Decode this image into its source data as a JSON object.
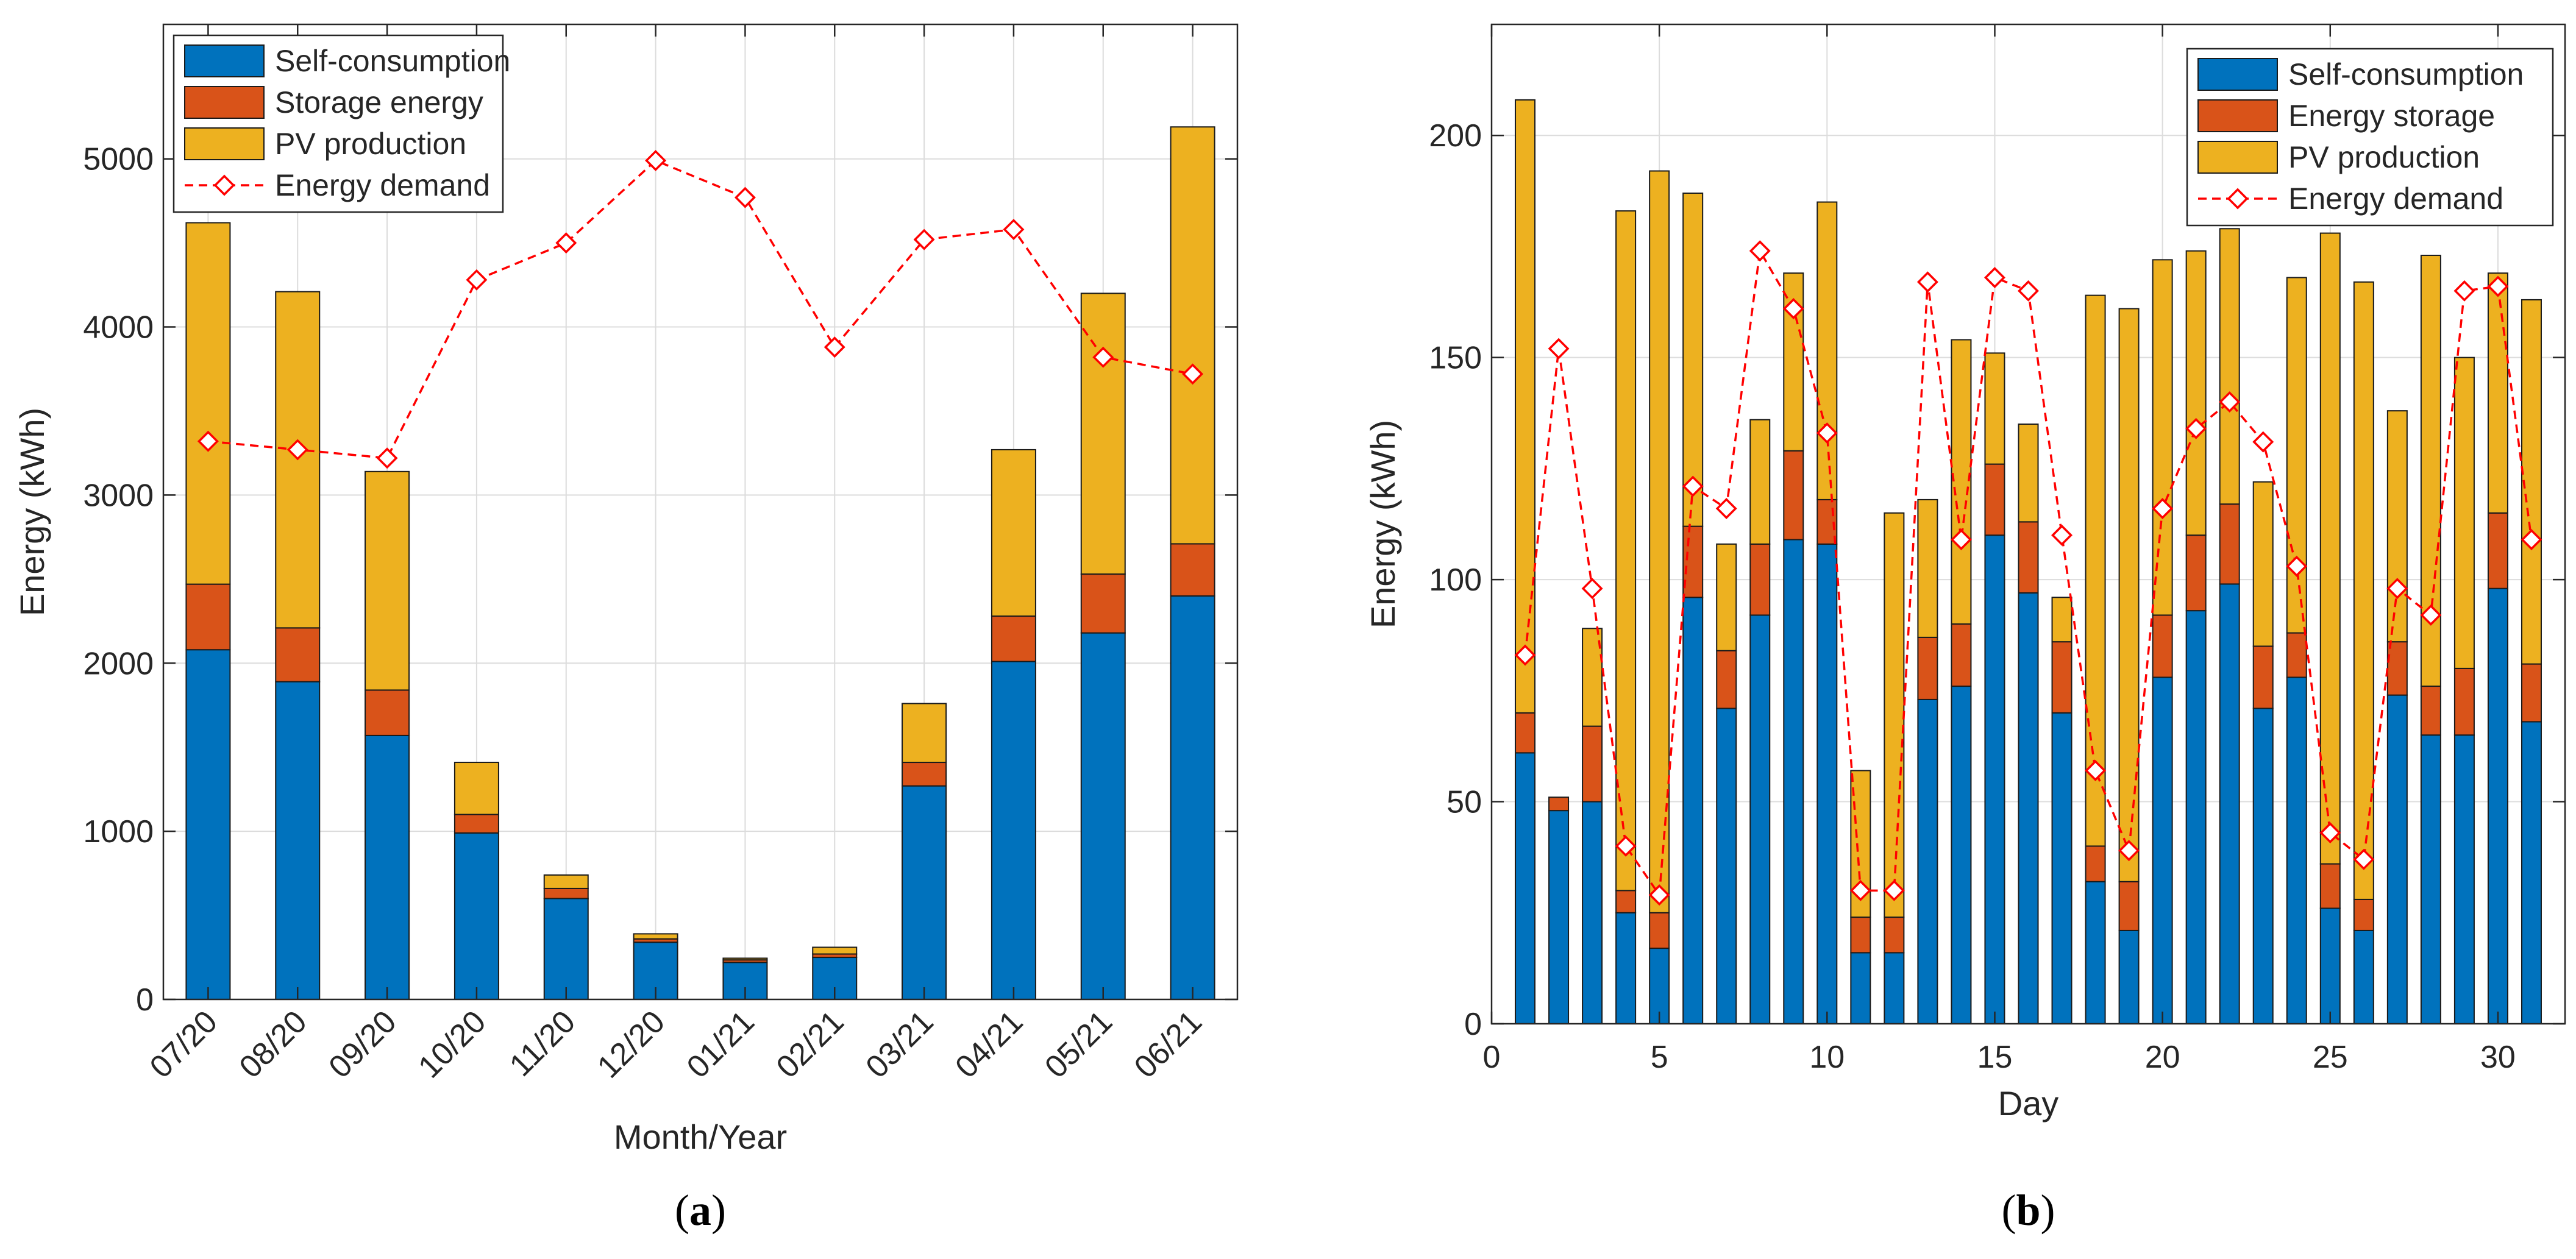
{
  "chart_data": [
    {
      "id": "a",
      "type": "bar",
      "stacked": true,
      "panel_label": "(a)",
      "title": "",
      "xlabel": "Month/Year",
      "ylabel": "Energy (kWh)",
      "ylim": [
        0,
        5800
      ],
      "yticks": [
        0,
        1000,
        2000,
        3000,
        4000,
        5000
      ],
      "grid": true,
      "legend_position": "top-left",
      "categories": [
        "07/20",
        "08/20",
        "09/20",
        "10/20",
        "11/20",
        "12/20",
        "01/21",
        "02/21",
        "03/21",
        "04/21",
        "05/21",
        "06/21"
      ],
      "series": [
        {
          "name": "Self-consumption",
          "color": "#0072BD",
          "values": [
            2080,
            1890,
            1570,
            990,
            600,
            340,
            220,
            250,
            1270,
            2010,
            2180,
            2400
          ]
        },
        {
          "name": "Storage energy",
          "color": "#D95319",
          "values": [
            390,
            320,
            270,
            110,
            60,
            20,
            15,
            20,
            140,
            270,
            350,
            310
          ]
        },
        {
          "name": "PV production",
          "color": "#EDB120",
          "values": [
            2150,
            2000,
            1300,
            310,
            80,
            30,
            10,
            40,
            350,
            990,
            1670,
            2480
          ]
        }
      ],
      "line_series": {
        "name": "Energy demand",
        "color": "#FF0000",
        "values": [
          3320,
          3270,
          3220,
          4280,
          4500,
          4990,
          4770,
          3880,
          4520,
          4580,
          3820,
          3720
        ]
      }
    },
    {
      "id": "b",
      "type": "bar",
      "stacked": true,
      "panel_label": "(b)",
      "title": "",
      "xlabel": "Day",
      "ylabel": "Energy (kWh)",
      "xlim": [
        0,
        32
      ],
      "ylim": [
        0,
        225
      ],
      "xticks": [
        0,
        5,
        10,
        15,
        20,
        25,
        30
      ],
      "yticks": [
        0,
        50,
        100,
        150,
        200
      ],
      "grid": true,
      "legend_position": "top-right",
      "x": [
        1,
        2,
        3,
        4,
        5,
        6,
        7,
        8,
        9,
        10,
        11,
        12,
        13,
        14,
        15,
        16,
        17,
        18,
        19,
        20,
        21,
        22,
        23,
        24,
        25,
        26,
        27,
        28,
        29,
        30,
        31
      ],
      "series": [
        {
          "name": "Self-consumption",
          "color": "#0072BD",
          "values": [
            61,
            48,
            50,
            25,
            17,
            96,
            71,
            92,
            109,
            108,
            16,
            16,
            73,
            76,
            110,
            97,
            70,
            32,
            21,
            78,
            93,
            99,
            71,
            78,
            26,
            21,
            74,
            65,
            65,
            98,
            68
          ]
        },
        {
          "name": "Energy storage",
          "color": "#D95319",
          "values": [
            9,
            3,
            17,
            5,
            8,
            16,
            13,
            16,
            20,
            10,
            8,
            8,
            14,
            14,
            16,
            16,
            16,
            8,
            11,
            14,
            17,
            18,
            14,
            10,
            10,
            7,
            12,
            11,
            15,
            17,
            13
          ]
        },
        {
          "name": "PV production",
          "color": "#EDB120",
          "values": [
            138,
            0,
            22,
            153,
            167,
            75,
            24,
            28,
            40,
            67,
            33,
            91,
            31,
            64,
            25,
            22,
            10,
            124,
            129,
            80,
            64,
            62,
            37,
            80,
            142,
            139,
            52,
            97,
            70,
            54,
            82
          ]
        }
      ],
      "line_series": {
        "name": "Energy demand",
        "color": "#FF0000",
        "values": [
          83,
          152,
          98,
          40,
          29,
          121,
          116,
          174,
          161,
          133,
          30,
          30,
          167,
          109,
          168,
          165,
          110,
          57,
          39,
          116,
          134,
          140,
          131,
          103,
          43,
          37,
          98,
          92,
          165,
          166,
          109
        ]
      }
    }
  ]
}
